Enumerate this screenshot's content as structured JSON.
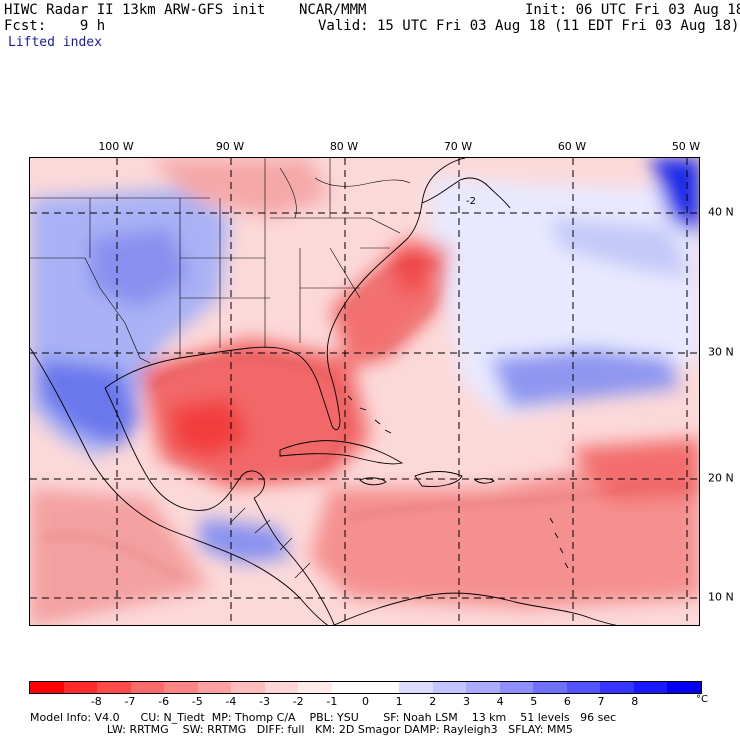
{
  "header": {
    "left_line1": "HIWC Radar II 13km ARW-GFS init    NCAR/MMM",
    "left_line2": "Fcst:    9 h",
    "field_name": "Lifted index",
    "init_text": "Init: 06 UTC Fri 03 Aug 18",
    "valid_text": "Valid: 15 UTC Fri 03 Aug 18 (11 EDT Fri 03 Aug 18)"
  },
  "map": {
    "longitude_labels": [
      "100 W",
      "90 W",
      "80 W",
      "70 W",
      "60 W",
      "50 W"
    ],
    "latitude_labels": [
      "40 N",
      "30 N",
      "20 N",
      "10 N"
    ],
    "contour_label": "-2"
  },
  "colorbar": {
    "colors": [
      "#ff0000",
      "#ff2a2a",
      "#ff4a4a",
      "#ff6a6a",
      "#ff8585",
      "#ffa0a0",
      "#ffbcbc",
      "#ffd6d6",
      "#ffeaea",
      "#ffffff",
      "#ffffff",
      "#dcdcff",
      "#c4c4ff",
      "#aaaaff",
      "#8e8eff",
      "#7070ff",
      "#5252ff",
      "#3535ff",
      "#1a1aff",
      "#0000ee"
    ],
    "ticks": [
      "-8",
      "-7",
      "-6",
      "-5",
      "-4",
      "-3",
      "-2",
      "-1",
      "0",
      "1",
      "2",
      "3",
      "4",
      "5",
      "6",
      "7",
      "8"
    ],
    "unit": "°C"
  },
  "model_info": {
    "line1": "Model Info: V4.0      CU: N_Tiedt  MP: Thomp C/A    PBL: YSU       SF: Noah LSM    13 km    51 levels   96 sec",
    "line2": "                      LW: RRTMG    SW: RRTMG   DIFF: full   KM: 2D Smagor DAMP: Rayleigh3   SFLAY: MM5"
  },
  "colors": {
    "unstable": "#ff3030",
    "stable": "#2a2aff",
    "land_outline": "#000000",
    "contour": "#8a0000"
  }
}
